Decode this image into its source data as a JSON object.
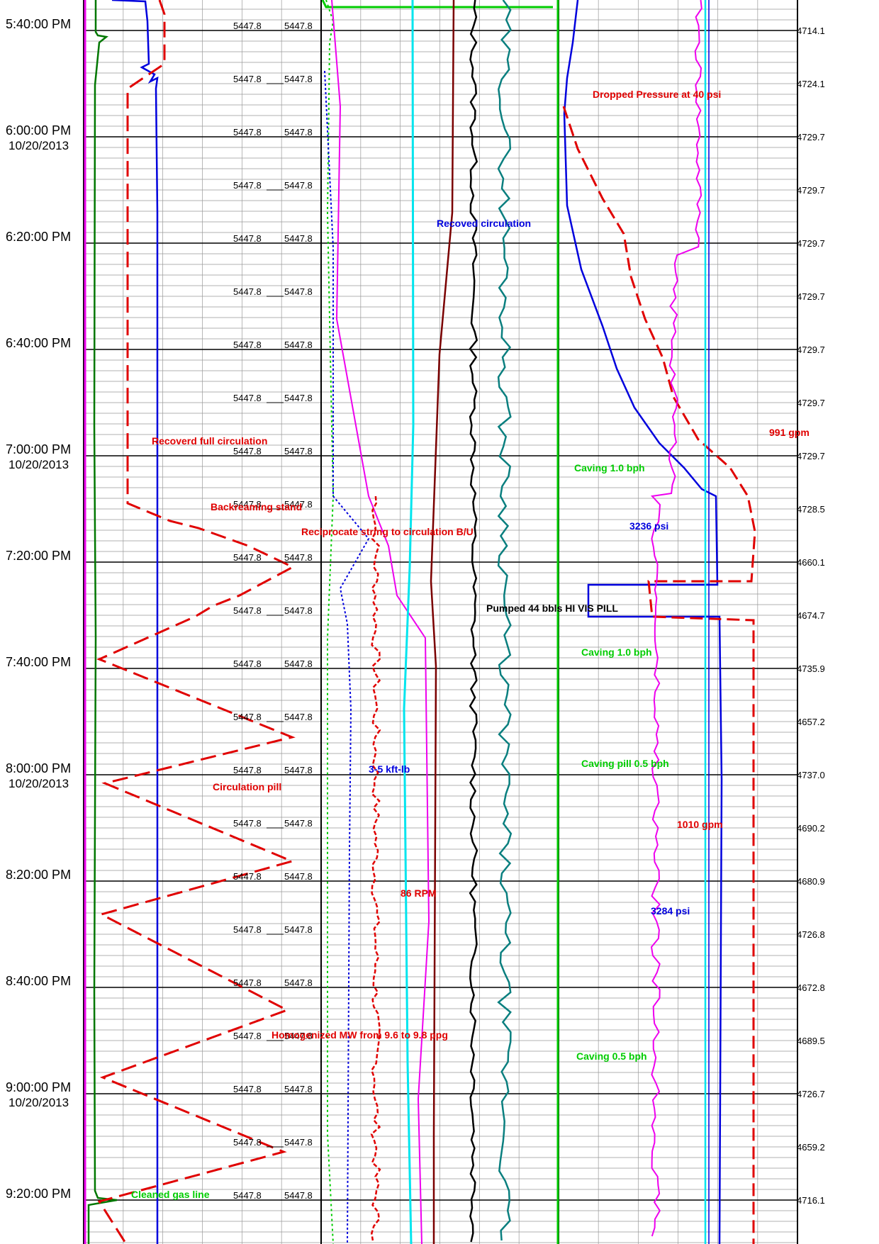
{
  "colors": {
    "red": "#e00000",
    "blue": "#0000dd",
    "green": "#00cc00",
    "darkgreen": "#007700",
    "magenta": "#ee00ee",
    "cyan": "#00e5ee",
    "brown": "#7a0000",
    "black": "#000000",
    "teal": "#0a7f7f",
    "grid_major": "#000000",
    "grid_minor": "#999999"
  },
  "chart_data": {
    "type": "line",
    "y_axis": "time",
    "time_ticks": [
      {
        "time": "5:40:00 PM",
        "date": ""
      },
      {
        "time": "6:00:00 PM",
        "date": "10/20/2013"
      },
      {
        "time": "6:20:00 PM",
        "date": ""
      },
      {
        "time": "6:40:00 PM",
        "date": ""
      },
      {
        "time": "7:00:00 PM",
        "date": "10/20/2013"
      },
      {
        "time": "7:20:00 PM",
        "date": ""
      },
      {
        "time": "7:40:00 PM",
        "date": ""
      },
      {
        "time": "8:00:00 PM",
        "date": "10/20/2013"
      },
      {
        "time": "8:20:00 PM",
        "date": ""
      },
      {
        "time": "8:40:00 PM",
        "date": ""
      },
      {
        "time": "9:00:00 PM",
        "date": "10/20/2013"
      },
      {
        "time": "9:20:00 PM",
        "date": ""
      }
    ],
    "depth_col1": [
      "5447.8",
      "5447.8",
      "5447.8",
      "5447.8",
      "5447.8",
      "5447.8",
      "5447.8",
      "5447.8",
      "5447.8",
      "5447.8",
      "5447.8",
      "5447.8",
      "5447.8",
      "5447.8",
      "5447.8",
      "5447.8",
      "5447.8",
      "5447.8",
      "5447.8",
      "5447.8",
      "5447.8",
      "5447.8",
      "5447.8"
    ],
    "depth_col2": [
      "5447.8",
      "5447.8",
      "5447.8",
      "5447.8",
      "5447.8",
      "5447.8",
      "5447.8",
      "5447.8",
      "5447.8",
      "5447.8",
      "5447.8",
      "5447.8",
      "5447.8",
      "5447.8",
      "5447.8",
      "5447.8",
      "5447.8",
      "5447.8",
      "5447.8",
      "5447.8",
      "5447.8",
      "5447.8",
      "5447.8"
    ],
    "right_values": [
      "4714.1",
      "4724.1",
      "4729.7",
      "4729.7",
      "4729.7",
      "4729.7",
      "4729.7",
      "4729.7",
      "4729.7",
      "4728.5",
      "4660.1",
      "4674.7",
      "4735.9",
      "4657.2",
      "4737.0",
      "4690.2",
      "4680.9",
      "4726.8",
      "4672.8",
      "4689.5",
      "4726.7",
      "4659.2",
      "4716.1"
    ],
    "annotations": [
      {
        "text": "Dropped Pressure at 40 psi",
        "color": "red"
      },
      {
        "text": "Recoved circulation",
        "color": "blue"
      },
      {
        "text": "Recoverd full circulation",
        "color": "red"
      },
      {
        "text": "991 gpm",
        "color": "red"
      },
      {
        "text": "Caving 1.0 bph",
        "color": "green"
      },
      {
        "text": "Backreaming stand",
        "color": "red"
      },
      {
        "text": "3236 psi",
        "color": "blue"
      },
      {
        "text": "Reciprocate string to circulation B/U",
        "color": "red"
      },
      {
        "text": "Pumped 44 bbls HI VIS PILL",
        "color": "black"
      },
      {
        "text": "Caving 1.0 bph",
        "color": "green"
      },
      {
        "text": "Caving pill 0.5 bph",
        "color": "green"
      },
      {
        "text": "3-5 kft-lb",
        "color": "blue"
      },
      {
        "text": "Circulation pill",
        "color": "red"
      },
      {
        "text": "1010 gpm",
        "color": "red"
      },
      {
        "text": "86 RPM",
        "color": "red"
      },
      {
        "text": "3284 psi",
        "color": "blue"
      },
      {
        "text": "Homogenized MW from 9.6 to 9.8 ppg",
        "color": "red"
      },
      {
        "text": "Caving 0.5 bph",
        "color": "green"
      },
      {
        "text": "Cleaned gas line",
        "color": "green"
      }
    ]
  }
}
